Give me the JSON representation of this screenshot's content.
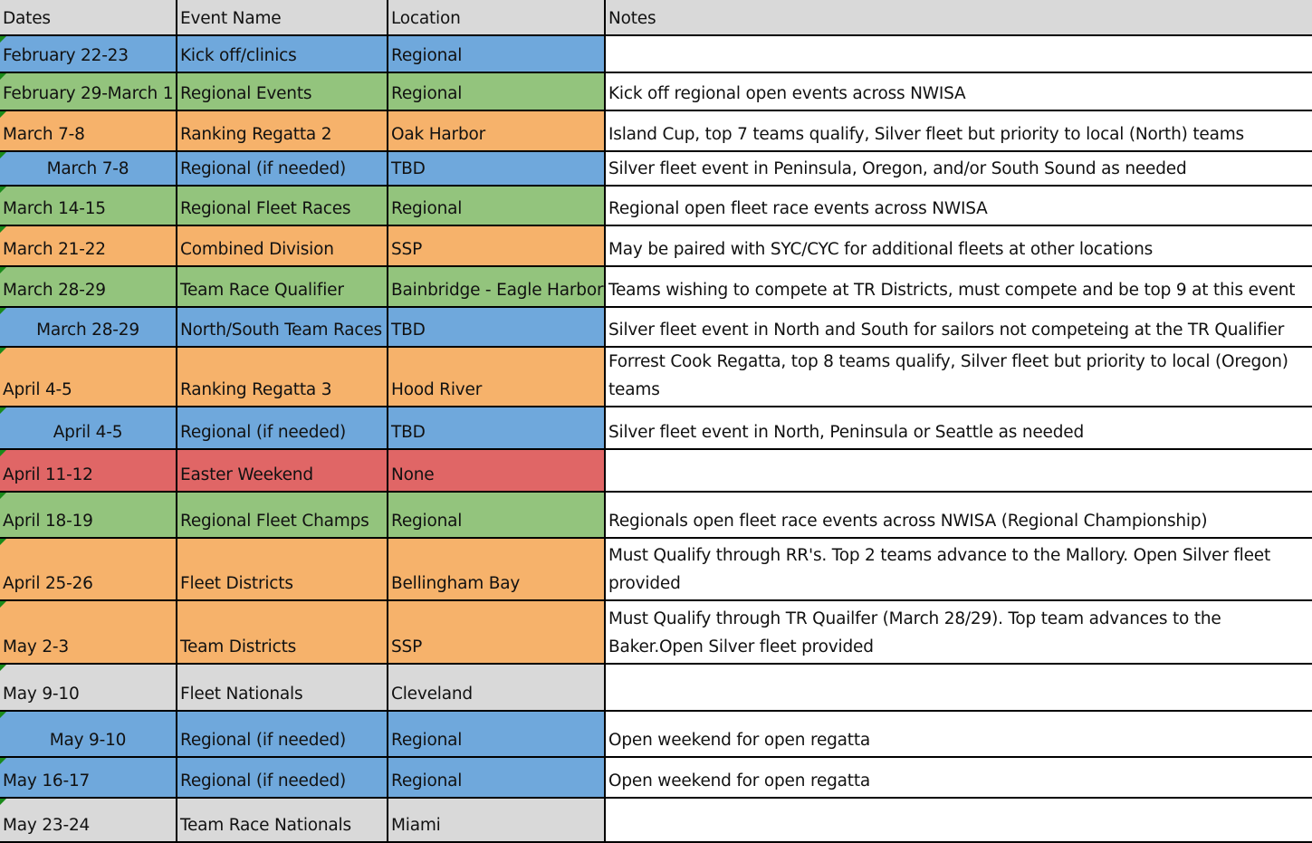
{
  "colors": {
    "blue": "#6fa8dc",
    "green": "#93c47d",
    "orange": "#f6b26b",
    "red": "#e06666",
    "gray": "#d9d9d9"
  },
  "headers": [
    "Dates",
    "Event Name",
    "Location",
    "Notes"
  ],
  "rows": [
    {
      "date": "February 22-23",
      "event": "Kick off/clinics",
      "location": "Regional",
      "notes": "",
      "color": "blue",
      "center": false,
      "h": 41
    },
    {
      "date": "February 29-March 1",
      "event": "Regional Events",
      "location": "Regional",
      "notes": "Kick off regional open events across NWISA",
      "color": "green",
      "center": false,
      "h": 42
    },
    {
      "date": "March 7-8",
      "event": "Ranking Regatta 2",
      "location": "Oak Harbor",
      "notes": "Island Cup, top 7 teams qualify, Silver fleet but priority to local (North) teams",
      "color": "orange",
      "center": false,
      "h": 45
    },
    {
      "date": "March 7-8",
      "event": "Regional (if needed)",
      "location": "TBD",
      "notes": "Silver fleet event in Peninsula, Oregon, and/or South Sound as needed",
      "color": "blue",
      "center": true,
      "h": 38
    },
    {
      "date": "March 14-15",
      "event": "Regional Fleet Races",
      "location": "Regional",
      "notes": "Regional open fleet race events across NWISA",
      "color": "green",
      "center": false,
      "h": 44
    },
    {
      "date": "March 21-22",
      "event": "Combined Division",
      "location": "SSP",
      "notes": "May be paired with SYC/CYC for additional fleets at other locations",
      "color": "orange",
      "center": false,
      "h": 45
    },
    {
      "date": "March 28-29",
      "event": "Team Race Qualifier",
      "location": "Bainbridge - Eagle Harbor",
      "notes": "Teams wishing to compete at TR Districts, must compete and be top 9 at this event",
      "color": "green",
      "center": false,
      "h": 45
    },
    {
      "date": "March 28-29",
      "event": "North/South Team Races",
      "location": "TBD",
      "notes": "Silver fleet event in North and South for sailors not competeing at the TR Qualifier",
      "color": "blue",
      "center": true,
      "h": 44
    },
    {
      "date": "April 4-5",
      "event": "Ranking Regatta 3",
      "location": "Hood River",
      "notes": "Forrest Cook Regatta, top 8 teams qualify, Silver fleet but priority to local (Oregon) teams",
      "color": "orange",
      "center": false,
      "h": 49
    },
    {
      "date": "April 4-5",
      "event": "Regional (if needed)",
      "location": "TBD",
      "notes": "Silver fleet event in North, Peninsula or Seattle as needed",
      "color": "blue",
      "center": true,
      "h": 47
    },
    {
      "date": "April 11-12",
      "event": "Easter Weekend",
      "location": "None",
      "notes": "",
      "color": "red",
      "center": false,
      "h": 47
    },
    {
      "date": "April 18-19",
      "event": "Regional Fleet Champs",
      "location": "Regional",
      "notes": "Regionals open fleet race events across NWISA (Regional Championship)",
      "color": "green",
      "center": false,
      "h": 51
    },
    {
      "date": "April 25-26",
      "event": "Fleet Districts",
      "location": "Bellingham Bay",
      "notes": "Must Qualify through RR's. Top 2 teams advance to the Mallory. Open Silver fleet provided",
      "color": "orange",
      "center": false,
      "h": 69
    },
    {
      "date": "May 2-3",
      "event": "Team Districts",
      "location": "SSP",
      "notes": "Must Qualify through TR Quailfer (March 28/29). Top team advances to the Baker.Open Silver fleet provided",
      "color": "orange",
      "center": false,
      "h": 70
    },
    {
      "date": "May 9-10",
      "event": "Fleet Nationals",
      "location": "Cleveland",
      "notes": "",
      "color": "gray",
      "center": false,
      "h": 52
    },
    {
      "date": "May 9-10",
      "event": "Regional (if needed)",
      "location": "Regional",
      "notes": "Open weekend for open regatta",
      "color": "blue",
      "center": true,
      "h": 51
    },
    {
      "date": "May 16-17",
      "event": "Regional (if needed)",
      "location": "Regional",
      "notes": "Open weekend for open regatta",
      "color": "blue",
      "center": false,
      "h": 45
    },
    {
      "date": "May 23-24",
      "event": "Team Race Nationals",
      "location": "Miami",
      "notes": "",
      "color": "gray",
      "center": false,
      "h": 49
    }
  ]
}
